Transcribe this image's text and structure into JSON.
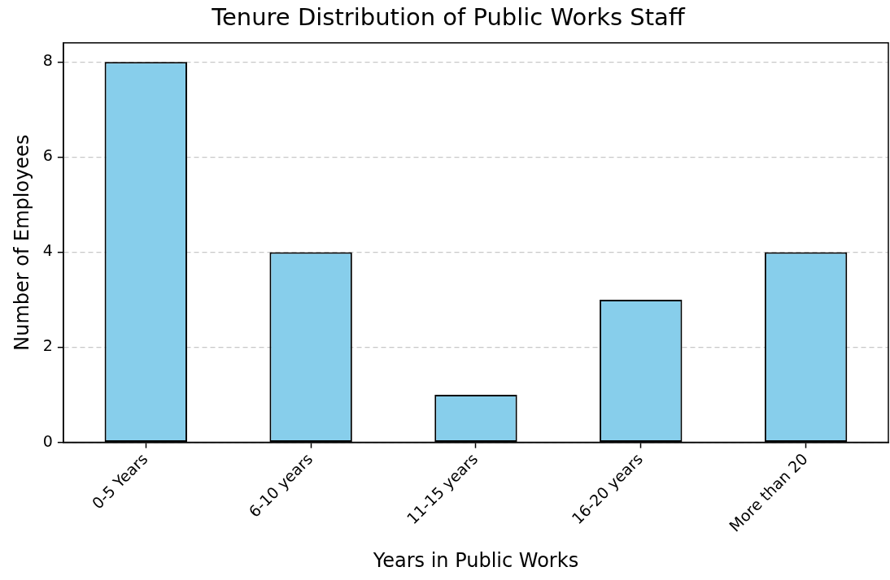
{
  "chart_data": {
    "type": "bar",
    "title": "Tenure Distribution of Public Works Staff",
    "xlabel": "Years in Public Works",
    "ylabel": "Number of Employees",
    "categories": [
      "0-5 Years",
      "6-10 years",
      "11-15 years",
      "16-20 years",
      "More than 20"
    ],
    "values": [
      8,
      4,
      1,
      3,
      4
    ],
    "color": "#87ceeb",
    "ylim": [
      0,
      8.4
    ],
    "yticks": [
      0,
      2,
      4,
      6,
      8
    ],
    "grid": "y",
    "legend": false
  }
}
